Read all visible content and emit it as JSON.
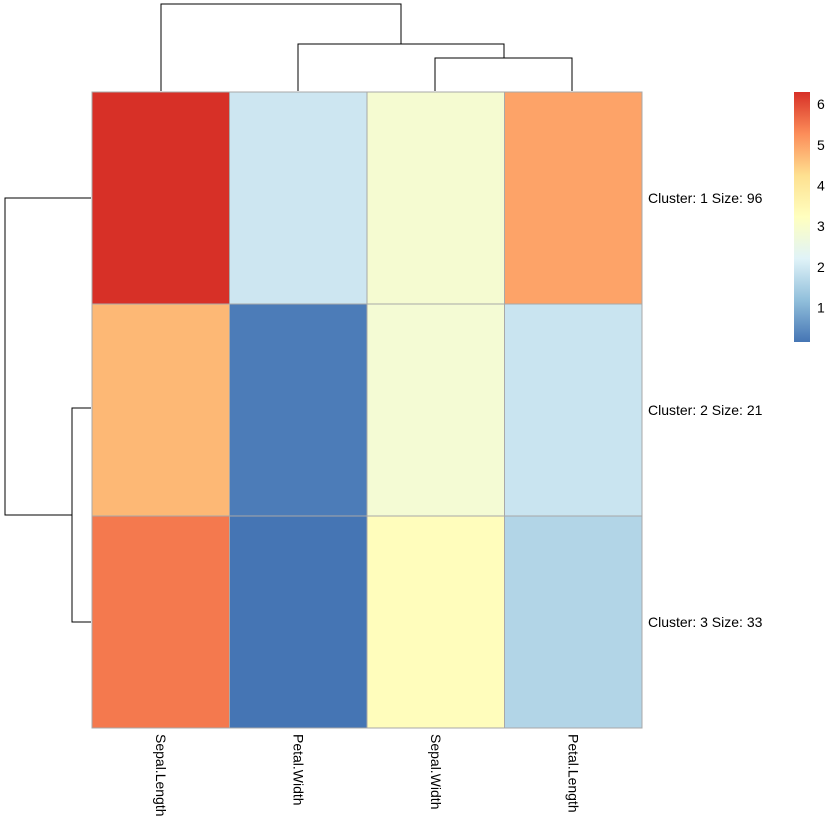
{
  "chart_data": {
    "type": "heatmap",
    "title": "",
    "xlabel": "",
    "ylabel": "",
    "columns": [
      "Sepal.Length",
      "Petal.Width",
      "Sepal.Width",
      "Petal.Length"
    ],
    "rows": [
      "Cluster: 1 Size: 96",
      "Cluster: 2 Size: 21",
      "Cluster: 3 Size: 33"
    ],
    "values": [
      [
        6.3,
        1.95,
        2.9,
        5.0
      ],
      [
        4.75,
        0.25,
        2.85,
        1.9
      ],
      [
        5.5,
        0.15,
        3.3,
        1.6
      ]
    ],
    "color_scale": {
      "min": 0.15,
      "max": 6.3,
      "colors": [
        "#4575b4",
        "#91bfdb",
        "#e0f3f8",
        "#ffffbf",
        "#fee090",
        "#fc8d59",
        "#d73027"
      ]
    },
    "legend": {
      "position": "right",
      "ticks": [
        "1",
        "2",
        "3",
        "4",
        "5",
        "6"
      ]
    },
    "row_dendrogram": "((Cluster 2, Cluster 3), Cluster 1)",
    "column_dendrogram": "(Sepal.Length, (Petal.Width, (Sepal.Width, Petal.Length)))"
  }
}
